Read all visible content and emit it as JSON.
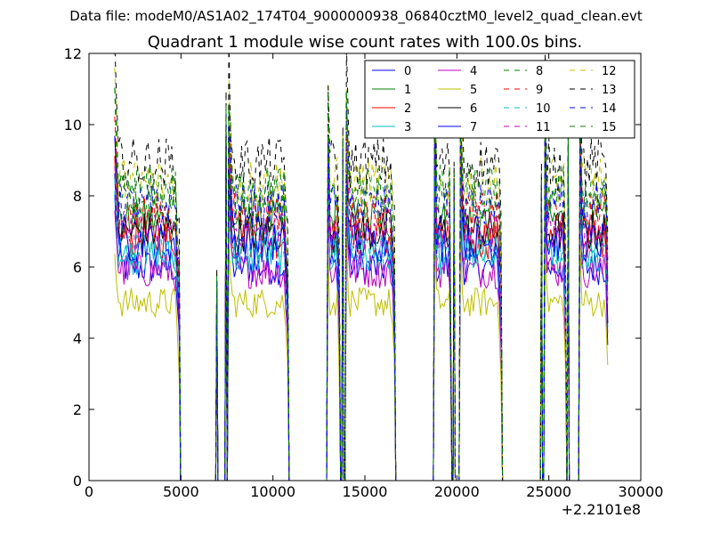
{
  "chart_data": {
    "type": "line",
    "suptitle": "Data file: modeM0/AS1A02_174T04_9000000938_06840cztM0_level2_quad_clean.evt",
    "title": "Quadrant 1 module wise count rates with 100.0s bins.",
    "xlabel": "",
    "ylabel": "",
    "x_offset_label": "+2.2101e8",
    "xlim": [
      0,
      30000
    ],
    "ylim": [
      0,
      12
    ],
    "xticks": [
      "0",
      "5000",
      "10000",
      "15000",
      "20000",
      "25000",
      "30000"
    ],
    "yticks": [
      "0",
      "2",
      "4",
      "6",
      "8",
      "10",
      "12"
    ],
    "legend_position": "top-right",
    "observation_windows": [
      [
        1400,
        4900
      ],
      [
        7600,
        10800
      ],
      [
        13000,
        13600
      ],
      [
        14000,
        16600
      ],
      [
        18800,
        19650
      ],
      [
        20200,
        22400
      ],
      [
        24800,
        25900
      ],
      [
        26700,
        28200
      ]
    ],
    "gap_spikes": [
      [
        6950,
        6
      ],
      [
        7450,
        11
      ],
      [
        13800,
        10
      ],
      [
        19850,
        9
      ],
      [
        24600,
        9
      ],
      [
        26050,
        10
      ]
    ],
    "series": [
      {
        "name": "0",
        "level": 6.0,
        "color": "#0000ff",
        "dash": "solid"
      },
      {
        "name": "1",
        "level": 7.3,
        "color": "#008000",
        "dash": "solid"
      },
      {
        "name": "2",
        "level": 6.8,
        "color": "#ff0000",
        "dash": "solid"
      },
      {
        "name": "3",
        "level": 6.3,
        "color": "#00bfbf",
        "dash": "solid"
      },
      {
        "name": "4",
        "level": 5.9,
        "color": "#bf00bf",
        "dash": "solid"
      },
      {
        "name": "5",
        "level": 5.0,
        "color": "#bfbf00",
        "dash": "solid"
      },
      {
        "name": "6",
        "level": 7.0,
        "color": "#000000",
        "dash": "solid"
      },
      {
        "name": "7",
        "level": 6.7,
        "color": "#0000ff",
        "dash": "solid"
      },
      {
        "name": "8",
        "level": 7.9,
        "color": "#008000",
        "dash": "dashed"
      },
      {
        "name": "9",
        "level": 7.5,
        "color": "#ff0000",
        "dash": "dashed"
      },
      {
        "name": "10",
        "level": 6.5,
        "color": "#00bfbf",
        "dash": "dashed"
      },
      {
        "name": "11",
        "level": 7.0,
        "color": "#bf00bf",
        "dash": "dashed"
      },
      {
        "name": "12",
        "level": 8.4,
        "color": "#bfbf00",
        "dash": "dashed"
      },
      {
        "name": "13",
        "level": 8.9,
        "color": "#000000",
        "dash": "dashed"
      },
      {
        "name": "14",
        "level": 7.7,
        "color": "#0000ff",
        "dash": "dashed"
      },
      {
        "name": "15",
        "level": 8.2,
        "color": "#008000",
        "dash": "dashed"
      }
    ]
  }
}
